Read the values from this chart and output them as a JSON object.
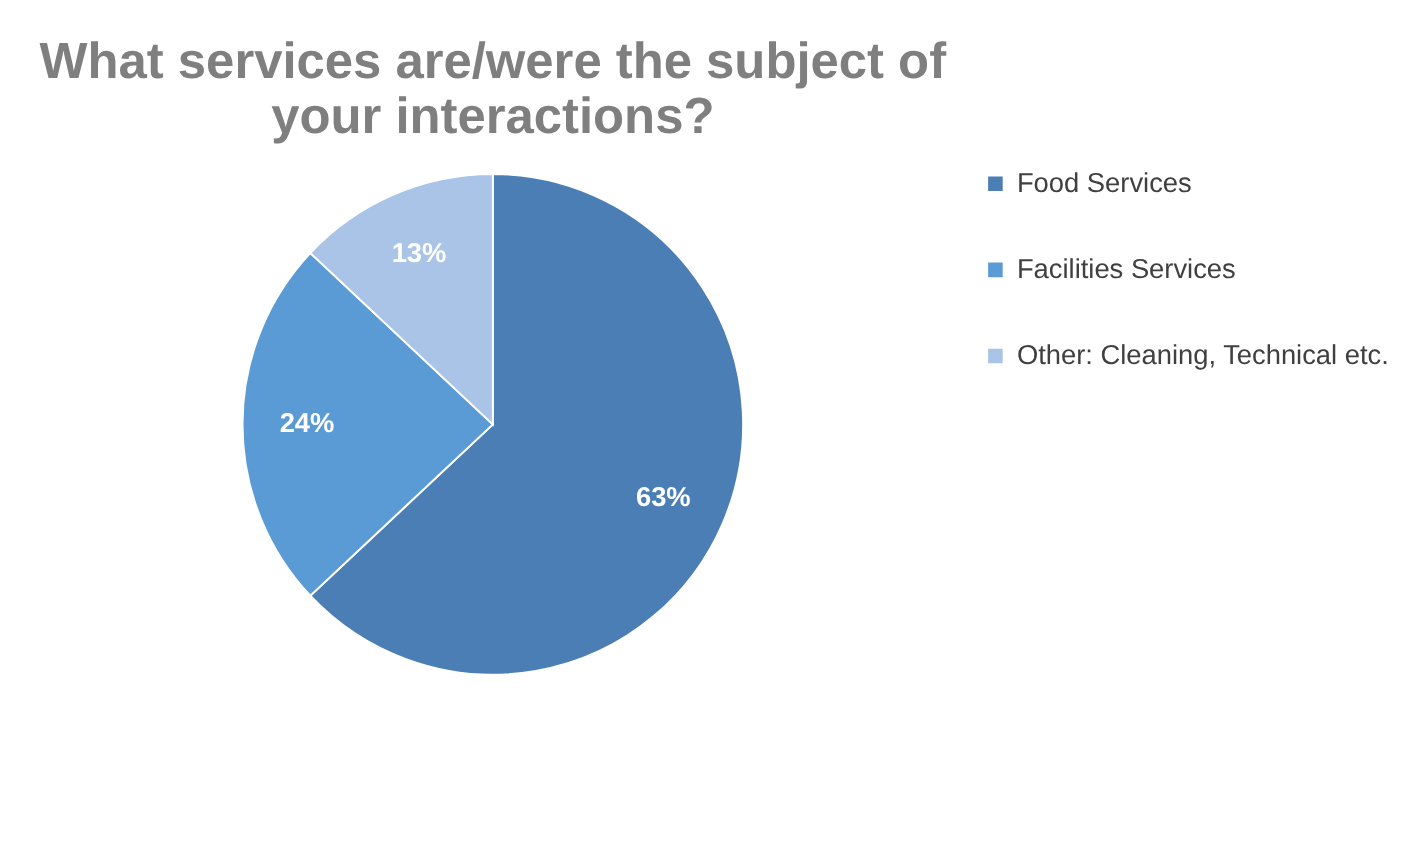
{
  "chart_data": {
    "type": "pie",
    "title": [
      "What services are/were the subject of",
      "your interactions?"
    ],
    "categories": [
      "Food Services",
      "Facilities Services",
      "Other: Cleaning, Technical etc."
    ],
    "values": [
      63,
      24,
      13
    ],
    "colors": [
      "#4a7eb4",
      "#5b9bd5",
      "#a9c4e7"
    ],
    "value_labels": [
      "63%",
      "24%",
      "13%"
    ],
    "legend": "right"
  }
}
